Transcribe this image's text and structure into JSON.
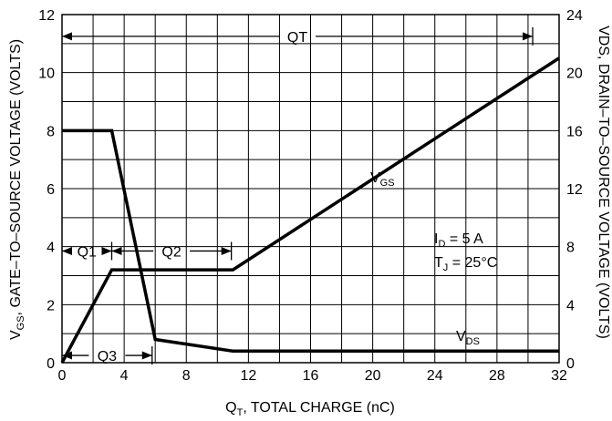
{
  "chart_data": {
    "type": "line",
    "x_axis": {
      "label_main": "Q",
      "label_sub": "T",
      "label_rest": ", TOTAL CHARGE (nC)",
      "range": [
        0,
        32
      ],
      "ticks": [
        0,
        4,
        8,
        12,
        16,
        20,
        24,
        28,
        32
      ]
    },
    "y_left": {
      "label_main": "V",
      "label_sub": "GS",
      "label_rest": ", GATE–TO–SOURCE VOLTAGE (VOLTS)",
      "range": [
        0,
        12
      ],
      "ticks": [
        0,
        2,
        4,
        6,
        8,
        10,
        12
      ]
    },
    "y_right": {
      "label_main": "V",
      "label_rest": "DS, DRAIN–TO–SOURCE VOLTAGE (VOLTS)",
      "range": [
        0,
        24
      ],
      "ticks": [
        0,
        4,
        8,
        12,
        16,
        20,
        24
      ]
    },
    "grid": true,
    "series": [
      {
        "name_main": "V",
        "name_sub": "GS",
        "axis": "left",
        "points": [
          [
            0,
            0
          ],
          [
            3.2,
            3.2
          ],
          [
            11.0,
            3.2
          ],
          [
            32,
            10.5
          ]
        ]
      },
      {
        "name_main": "V",
        "name_sub": "DS",
        "axis": "right",
        "points": [
          [
            0,
            16
          ],
          [
            3.2,
            16
          ],
          [
            6.0,
            1.6
          ],
          [
            11.0,
            0.8
          ],
          [
            32,
            0.8
          ]
        ]
      }
    ],
    "charge_markers": [
      {
        "label": "QT",
        "from": 0,
        "to": 30.3,
        "level": 11.25
      },
      {
        "label": "Q1",
        "from": 0,
        "to": 3.2,
        "level": 3.85
      },
      {
        "label": "Q2",
        "from": 3.2,
        "to": 10.9,
        "level": 3.85
      },
      {
        "label": "Q3",
        "from": 0,
        "to": 5.8,
        "level": 0.25
      }
    ],
    "conditions": {
      "id_main": "I",
      "id_sub": "D",
      "id_rest": " = 5 A",
      "tj_main": "T",
      "tj_sub": "J",
      "tj_rest": " = 25°C"
    }
  }
}
